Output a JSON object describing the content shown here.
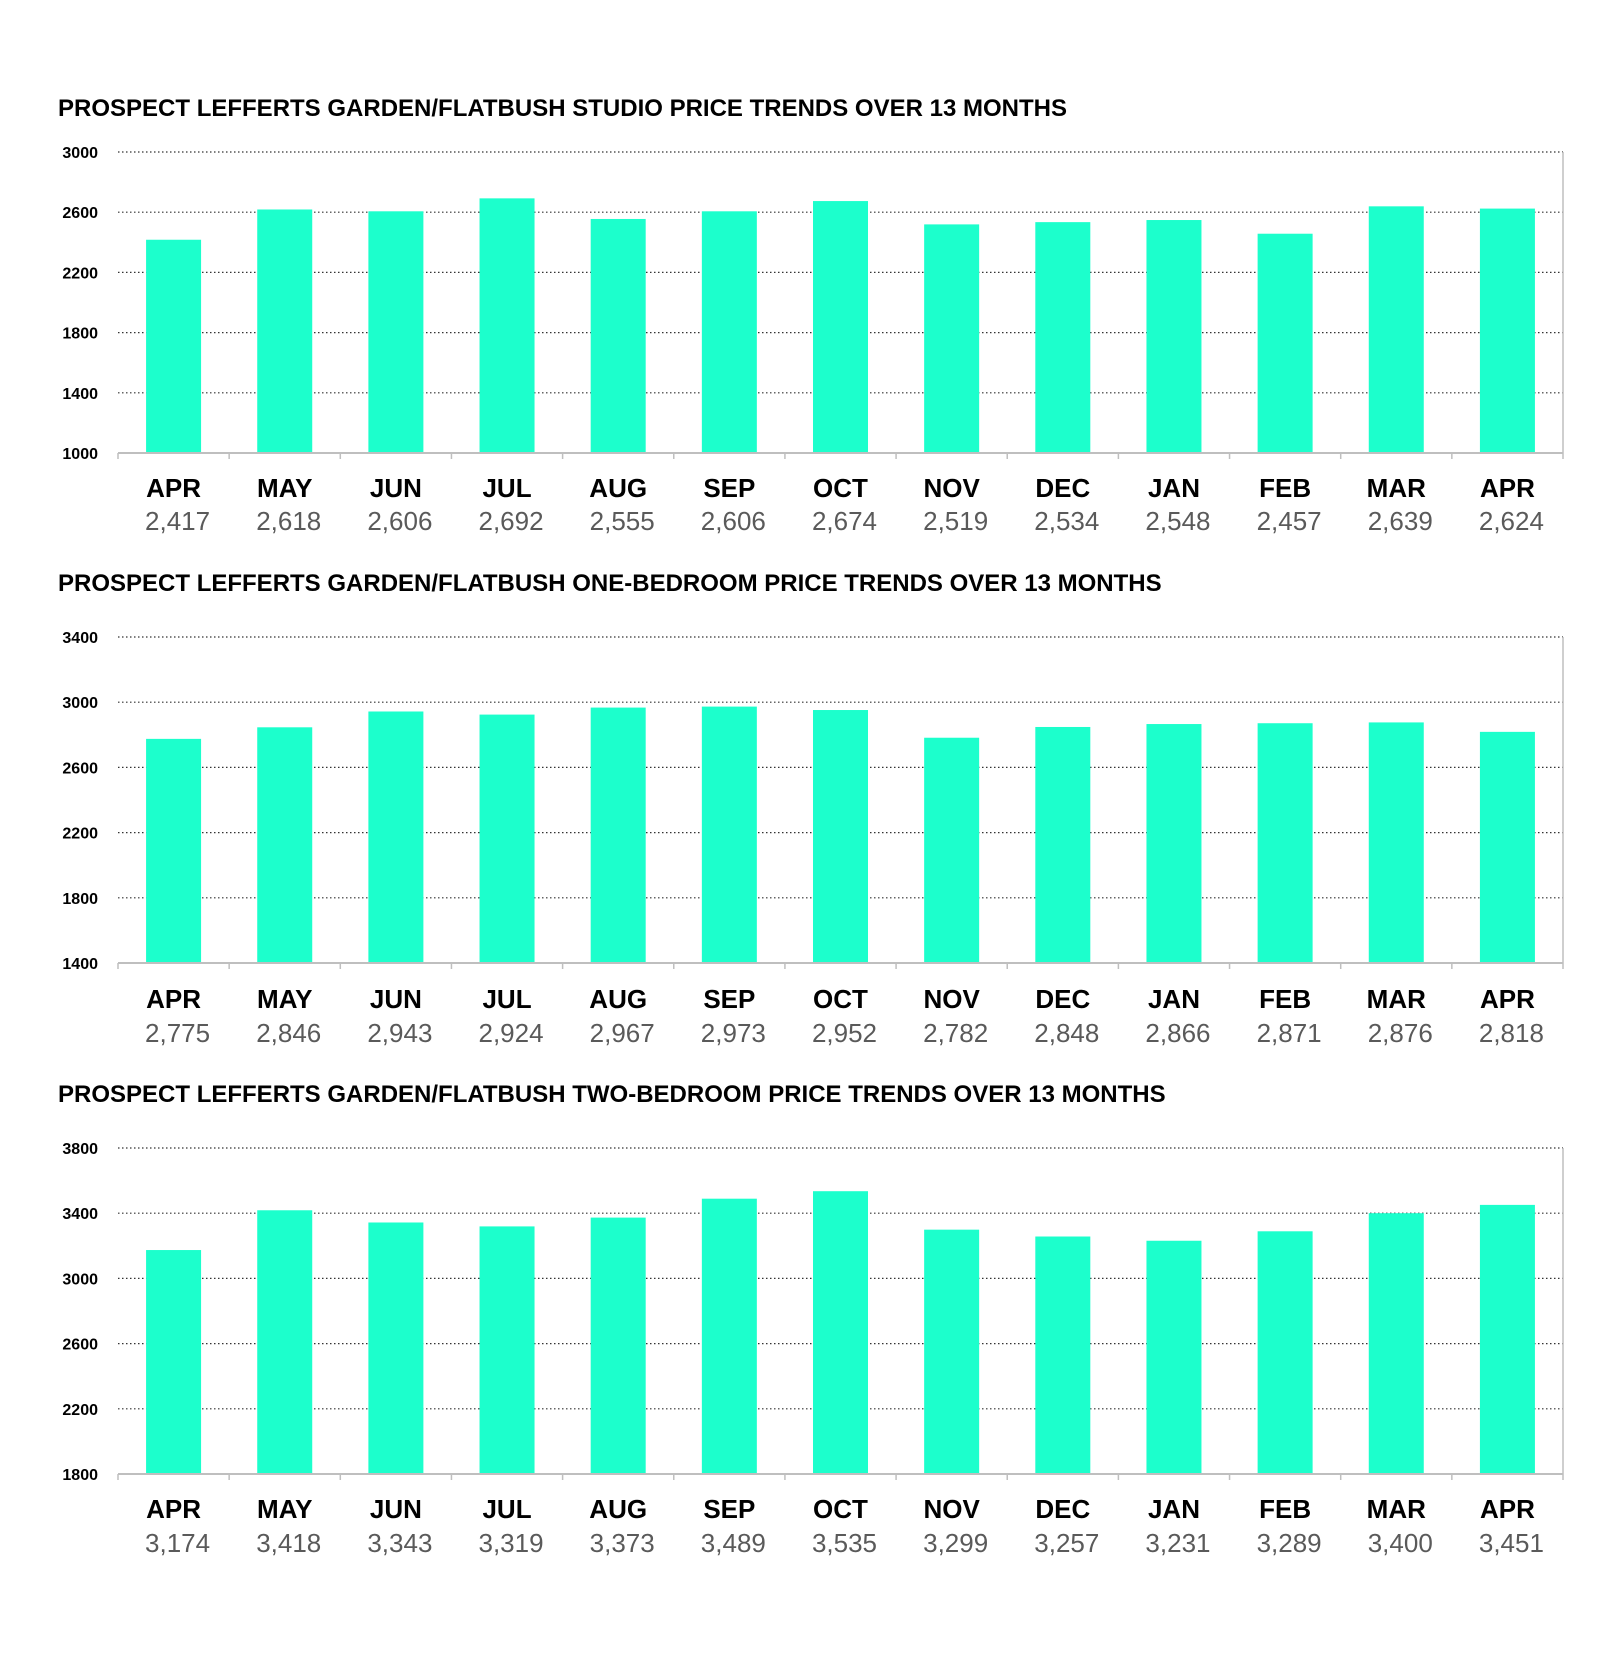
{
  "colors": {
    "bar": "#1cffcc",
    "grid": "#333333",
    "axis": "#bfbfbf"
  },
  "chart_data": [
    {
      "type": "bar",
      "title": "PROSPECT LEFFERTS GARDEN/FLATBUSH STUDIO PRICE TRENDS OVER 13 MONTHS",
      "xlabel": "",
      "ylabel": "",
      "categories": [
        "APR",
        "MAY",
        "JUN",
        "JUL",
        "AUG",
        "SEP",
        "OCT",
        "NOV",
        "DEC",
        "JAN",
        "FEB",
        "MAR",
        "APR"
      ],
      "values": [
        2417,
        2618,
        2606,
        2692,
        2555,
        2606,
        2674,
        2519,
        2534,
        2548,
        2457,
        2639,
        2624
      ],
      "value_labels": [
        "2,417",
        "2,618",
        "2,606",
        "2,692",
        "2,555",
        "2,606",
        "2,674",
        "2,519",
        "2,534",
        "2,548",
        "2,457",
        "2,639",
        "2,624"
      ],
      "ylim": [
        1000,
        3000
      ],
      "yticks": [
        1000,
        1400,
        1800,
        2200,
        2600,
        3000
      ],
      "grid": true
    },
    {
      "type": "bar",
      "title": "PROSPECT LEFFERTS GARDEN/FLATBUSH ONE-BEDROOM PRICE TRENDS OVER 13 MONTHS",
      "xlabel": "",
      "ylabel": "",
      "categories": [
        "APR",
        "MAY",
        "JUN",
        "JUL",
        "AUG",
        "SEP",
        "OCT",
        "NOV",
        "DEC",
        "JAN",
        "FEB",
        "MAR",
        "APR"
      ],
      "values": [
        2775,
        2846,
        2943,
        2924,
        2967,
        2973,
        2952,
        2782,
        2848,
        2866,
        2871,
        2876,
        2818
      ],
      "value_labels": [
        "2,775",
        "2,846",
        "2,943",
        "2,924",
        "2,967",
        "2,973",
        "2,952",
        "2,782",
        "2,848",
        "2,866",
        "2,871",
        "2,876",
        "2,818"
      ],
      "ylim": [
        1400,
        3400
      ],
      "yticks": [
        1400,
        1800,
        2200,
        2600,
        3000,
        3400
      ],
      "grid": true
    },
    {
      "type": "bar",
      "title": "PROSPECT LEFFERTS GARDEN/FLATBUSH TWO-BEDROOM PRICE TRENDS OVER 13 MONTHS",
      "xlabel": "",
      "ylabel": "",
      "categories": [
        "APR",
        "MAY",
        "JUN",
        "JUL",
        "AUG",
        "SEP",
        "OCT",
        "NOV",
        "DEC",
        "JAN",
        "FEB",
        "MAR",
        "APR"
      ],
      "values": [
        3174,
        3418,
        3343,
        3319,
        3373,
        3489,
        3535,
        3299,
        3257,
        3231,
        3289,
        3400,
        3451
      ],
      "value_labels": [
        "3,174",
        "3,418",
        "3,343",
        "3,319",
        "3,373",
        "3,489",
        "3,535",
        "3,299",
        "3,257",
        "3,231",
        "3,289",
        "3,400",
        "3,451"
      ],
      "ylim": [
        1800,
        3800
      ],
      "yticks": [
        1800,
        2200,
        2600,
        3000,
        3400,
        3800
      ],
      "grid": true
    }
  ]
}
